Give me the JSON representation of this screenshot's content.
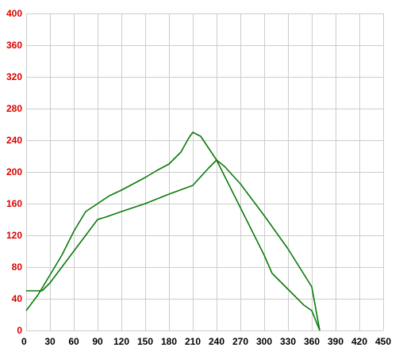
{
  "chart_data": {
    "type": "line",
    "title": "",
    "xlabel": "",
    "ylabel": "",
    "xlim": [
      0,
      450
    ],
    "ylim": [
      0,
      400
    ],
    "x_ticks": [
      0,
      30,
      60,
      90,
      120,
      150,
      180,
      210,
      240,
      270,
      300,
      330,
      360,
      390,
      420,
      450
    ],
    "y_ticks": [
      0,
      40,
      80,
      120,
      160,
      200,
      240,
      280,
      320,
      360,
      400
    ],
    "grid": true,
    "legend": "none",
    "line_color": "#0a7a0a",
    "tick_label_colors": {
      "y": "#dd0000",
      "x": "#000000"
    },
    "series": [
      {
        "points": [
          [
            0,
            25
          ],
          [
            15,
            45
          ],
          [
            30,
            70
          ],
          [
            45,
            95
          ],
          [
            60,
            125
          ],
          [
            75,
            150
          ],
          [
            90,
            160
          ],
          [
            105,
            170
          ],
          [
            120,
            177
          ],
          [
            135,
            185
          ],
          [
            150,
            193
          ],
          [
            165,
            202
          ],
          [
            180,
            210
          ],
          [
            195,
            225
          ],
          [
            205,
            243
          ],
          [
            210,
            250
          ],
          [
            220,
            245
          ],
          [
            240,
            215
          ],
          [
            270,
            155
          ],
          [
            300,
            95
          ],
          [
            310,
            72
          ],
          [
            330,
            52
          ],
          [
            350,
            32
          ],
          [
            360,
            25
          ],
          [
            370,
            0
          ]
        ]
      },
      {
        "points": [
          [
            0,
            50
          ],
          [
            20,
            50
          ],
          [
            30,
            60
          ],
          [
            60,
            100
          ],
          [
            90,
            140
          ],
          [
            100,
            143
          ],
          [
            120,
            150
          ],
          [
            150,
            160
          ],
          [
            180,
            172
          ],
          [
            210,
            183
          ],
          [
            230,
            205
          ],
          [
            240,
            215
          ],
          [
            250,
            207
          ],
          [
            270,
            185
          ],
          [
            300,
            145
          ],
          [
            330,
            103
          ],
          [
            360,
            55
          ],
          [
            370,
            0
          ]
        ]
      }
    ]
  }
}
